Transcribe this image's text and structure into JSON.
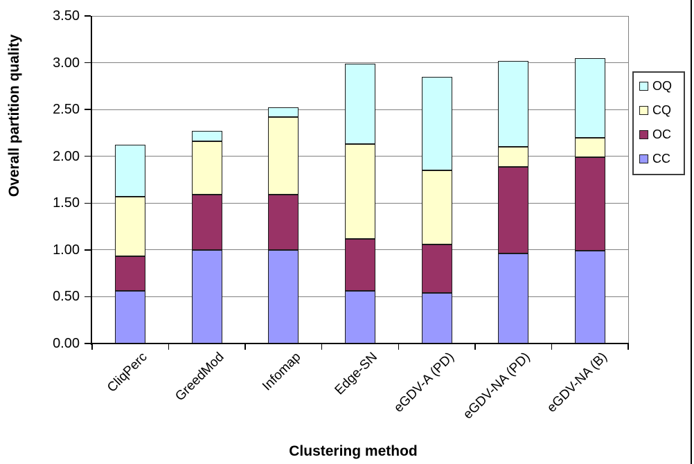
{
  "chart_data": {
    "type": "bar",
    "stacked": true,
    "title": "",
    "xlabel": "Clustering method",
    "ylabel": "Overall partition quality",
    "ylim": [
      0,
      3.5
    ],
    "y_tick_step": 0.5,
    "y_ticks": [
      "0.00",
      "0.50",
      "1.00",
      "1.50",
      "2.00",
      "2.50",
      "3.00",
      "3.50"
    ],
    "grid": true,
    "categories": [
      "CliqPerc",
      "GreedMod",
      "Infomap",
      "Edge-SN",
      "eGDV-A (PD)",
      "eGDV-NA (PD)",
      "eGDV-NA (B)"
    ],
    "series": [
      {
        "name": "CC",
        "color": "#9999FF",
        "values": [
          0.56,
          1.0,
          1.0,
          0.56,
          0.54,
          0.96,
          0.99
        ]
      },
      {
        "name": "OC",
        "color": "#993366",
        "values": [
          0.37,
          0.59,
          0.59,
          0.56,
          0.52,
          0.93,
          1.0
        ]
      },
      {
        "name": "CQ",
        "color": "#FFFFCC",
        "values": [
          0.64,
          0.57,
          0.83,
          1.01,
          0.79,
          0.21,
          0.21
        ]
      },
      {
        "name": "OQ",
        "color": "#CCFFFF",
        "values": [
          0.55,
          0.11,
          0.1,
          0.86,
          1.0,
          0.92,
          0.85
        ]
      }
    ],
    "stack_totals": [
      2.12,
      2.27,
      2.52,
      2.99,
      2.85,
      3.02,
      3.05
    ],
    "legend": {
      "position": "right",
      "entries": [
        "OQ",
        "CQ",
        "OC",
        "CC"
      ]
    }
  },
  "style": {
    "gridline_color": "#808080",
    "plot_border_color": "#808080",
    "axis_color": "#000000",
    "bar_border_color": "#1a1a1a",
    "background": "#FFFFFF"
  }
}
